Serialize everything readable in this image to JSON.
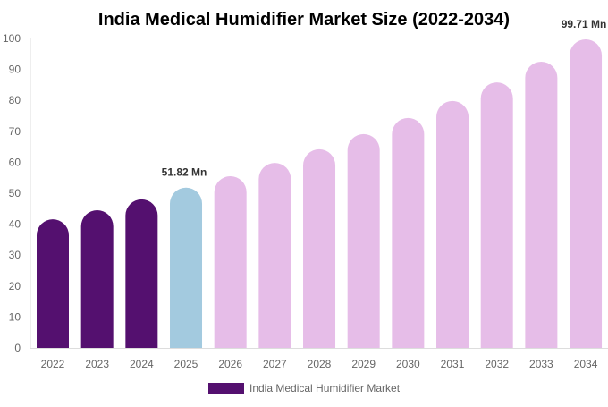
{
  "chart_data": {
    "type": "bar",
    "title": "India Medical Humidifier Market Size (2022-2034)",
    "xlabel": "",
    "ylabel": "",
    "ylim": [
      0,
      100
    ],
    "yticks": [
      0,
      10,
      20,
      30,
      40,
      50,
      60,
      70,
      80,
      90,
      100
    ],
    "grid": false,
    "legend_position": "bottom",
    "categories": [
      "2022",
      "2023",
      "2024",
      "2025",
      "2026",
      "2027",
      "2028",
      "2029",
      "2030",
      "2031",
      "2032",
      "2033",
      "2034"
    ],
    "series": [
      {
        "name": "India Medical Humidifier Market",
        "values": [
          41.6,
          44.5,
          48.0,
          51.82,
          55.5,
          59.8,
          64.2,
          69.1,
          74.3,
          79.8,
          85.8,
          92.5,
          99.71
        ],
        "colors": [
          "#54106f",
          "#54106f",
          "#54106f",
          "#a3cadf",
          "#e6bde8",
          "#e6bde8",
          "#e6bde8",
          "#e6bde8",
          "#e6bde8",
          "#e6bde8",
          "#e6bde8",
          "#e6bde8",
          "#e6bde8"
        ]
      }
    ],
    "data_labels": [
      {
        "category": "2025",
        "text": "51.82 Mn"
      },
      {
        "category": "2034",
        "text": "99.71 Mn"
      }
    ],
    "legend_color": "#54106f"
  }
}
